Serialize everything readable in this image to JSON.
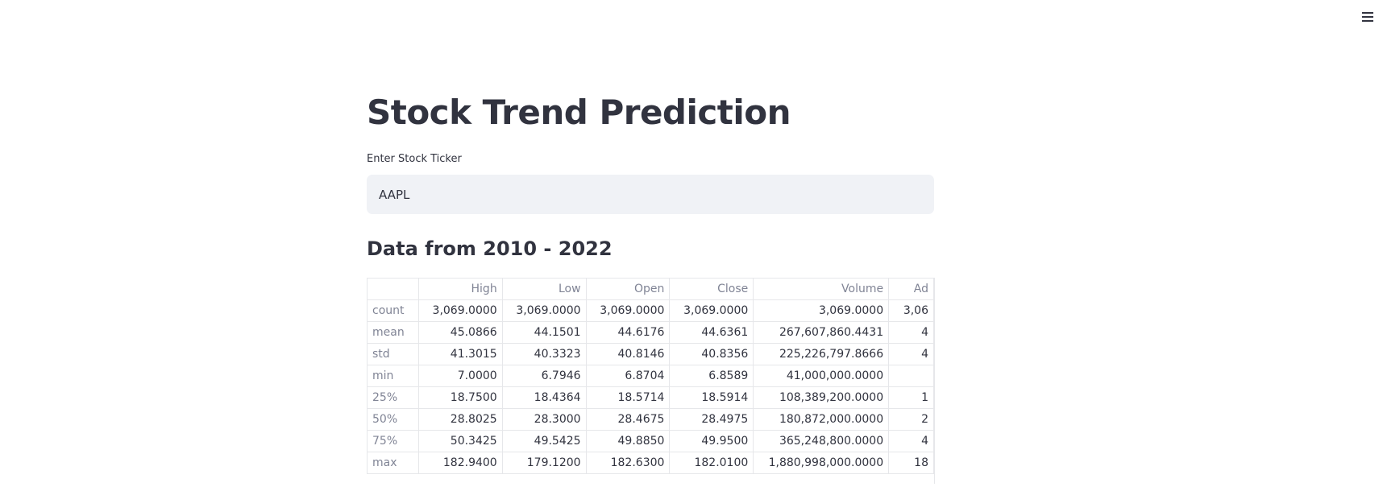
{
  "app": {
    "title": "Stock Trend Prediction",
    "input_label": "Enter Stock Ticker",
    "input_value": "AAPL",
    "subheader": "Data from 2010 - 2022",
    "menu_icon": "hamburger-menu-icon"
  },
  "table": {
    "columns": [
      "High",
      "Low",
      "Open",
      "Close",
      "Volume",
      "Ad"
    ],
    "rows": [
      {
        "label": "count",
        "values": [
          "3,069.0000",
          "3,069.0000",
          "3,069.0000",
          "3,069.0000",
          "3,069.0000",
          "3,06"
        ]
      },
      {
        "label": "mean",
        "values": [
          "45.0866",
          "44.1501",
          "44.6176",
          "44.6361",
          "267,607,860.4431",
          "4"
        ]
      },
      {
        "label": "std",
        "values": [
          "41.3015",
          "40.3323",
          "40.8146",
          "40.8356",
          "225,226,797.8666",
          "4"
        ]
      },
      {
        "label": "min",
        "values": [
          "7.0000",
          "6.7946",
          "6.8704",
          "6.8589",
          "41,000,000.0000",
          ""
        ]
      },
      {
        "label": "25%",
        "values": [
          "18.7500",
          "18.4364",
          "18.5714",
          "18.5914",
          "108,389,200.0000",
          "1"
        ]
      },
      {
        "label": "50%",
        "values": [
          "28.8025",
          "28.3000",
          "28.4675",
          "28.4975",
          "180,872,000.0000",
          "2"
        ]
      },
      {
        "label": "75%",
        "values": [
          "50.3425",
          "49.5425",
          "49.8850",
          "49.9500",
          "365,248,800.0000",
          "4"
        ]
      },
      {
        "label": "max",
        "values": [
          "182.9400",
          "179.1200",
          "182.6300",
          "182.0100",
          "1,880,998,000.0000",
          "18"
        ]
      }
    ]
  }
}
